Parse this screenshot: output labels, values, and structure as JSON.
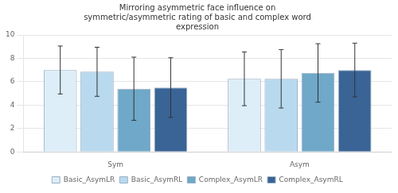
{
  "chart_data": {
    "type": "bar",
    "title": "Mirroring asymmetric face influence on\nsymmetric/asymmetric rating of basic and complex word\nexpression",
    "categories": [
      "Sym",
      "Asym"
    ],
    "series": [
      {
        "name": "Basic_AsymLR",
        "color": "#ddeef8",
        "values": [
          7.0,
          6.25
        ],
        "errors": [
          2.05,
          2.3
        ]
      },
      {
        "name": "Basic_AsymRL",
        "color": "#b8d9ee",
        "values": [
          6.85,
          6.25
        ],
        "errors": [
          2.1,
          2.5
        ]
      },
      {
        "name": "Complex_AsymLR",
        "color": "#6fa8c8",
        "values": [
          5.4,
          6.75
        ],
        "errors": [
          2.7,
          2.5
        ]
      },
      {
        "name": "Complex_AsymRL",
        "color": "#3a6496",
        "values": [
          5.5,
          7.0
        ],
        "errors": [
          2.55,
          2.3
        ]
      }
    ],
    "ylim": [
      0,
      10
    ],
    "yticks": [
      0,
      2,
      4,
      6,
      8,
      10
    ],
    "grid": true,
    "legend": "bottom"
  }
}
